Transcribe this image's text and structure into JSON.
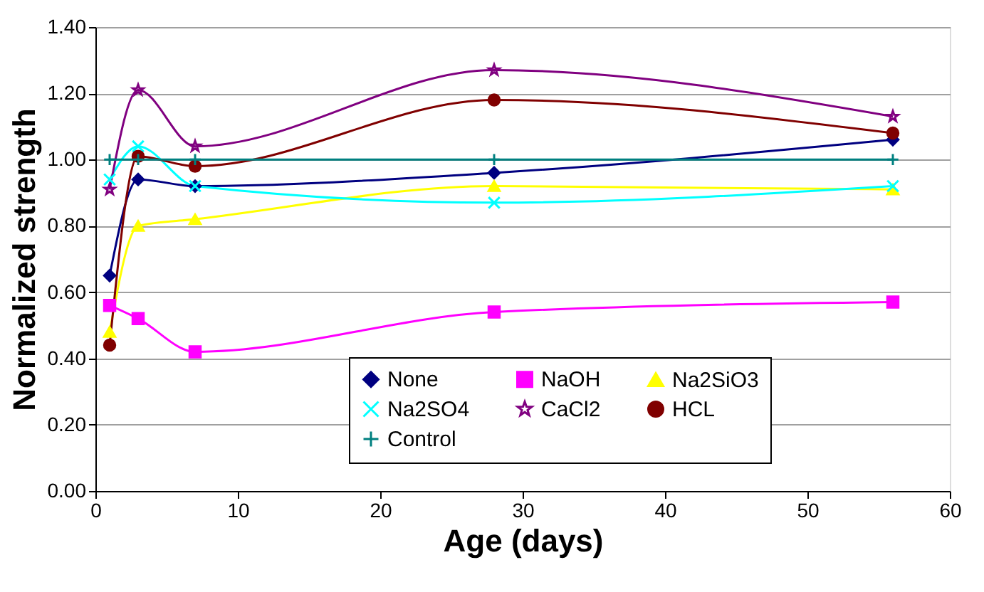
{
  "chart_data": {
    "type": "line",
    "xlabel": "Age (days)",
    "ylabel": "Normalized strength",
    "x": [
      1,
      3,
      7,
      28,
      56
    ],
    "series": [
      {
        "name": "None",
        "color": "#000080",
        "marker": "diamond",
        "values": [
          0.65,
          0.94,
          0.92,
          0.96,
          1.06
        ]
      },
      {
        "name": "NaOH",
        "color": "#ff00ff",
        "marker": "square",
        "values": [
          0.56,
          0.52,
          0.42,
          0.54,
          0.57
        ]
      },
      {
        "name": "Na2SiO3",
        "color": "#ffff00",
        "marker": "triangle",
        "values": [
          0.48,
          0.8,
          0.82,
          0.92,
          0.91
        ]
      },
      {
        "name": "Na2SO4",
        "color": "#00ffff",
        "marker": "cross",
        "values": [
          0.94,
          1.04,
          0.92,
          0.87,
          0.92
        ]
      },
      {
        "name": "CaCl2",
        "color": "#800080",
        "marker": "star",
        "values": [
          0.91,
          1.21,
          1.04,
          1.27,
          1.13
        ]
      },
      {
        "name": "HCL",
        "color": "#800000",
        "marker": "circle",
        "values": [
          0.44,
          1.01,
          0.98,
          1.18,
          1.08
        ]
      },
      {
        "name": "Control",
        "color": "#008080",
        "marker": "plus",
        "values": [
          1.0,
          1.0,
          1.0,
          1.0,
          1.0
        ]
      }
    ],
    "xlim": [
      0,
      60
    ],
    "xticks": [
      0,
      10,
      20,
      30,
      40,
      50,
      60
    ],
    "ylim": [
      0,
      1.4
    ],
    "yticks": [
      {
        "value": 0,
        "label": "0.00"
      },
      {
        "value": 0.2,
        "label": "0.20"
      },
      {
        "value": 0.4,
        "label": "0.40"
      },
      {
        "value": 0.6,
        "label": "0.60"
      },
      {
        "value": 0.8,
        "label": "0.80"
      },
      {
        "value": 1.0,
        "label": "1.00"
      },
      {
        "value": 1.2,
        "label": "1.20"
      },
      {
        "value": 1.4,
        "label": "1.40"
      }
    ],
    "grid": "y",
    "legend": "bottom right",
    "line_style": "solid"
  }
}
